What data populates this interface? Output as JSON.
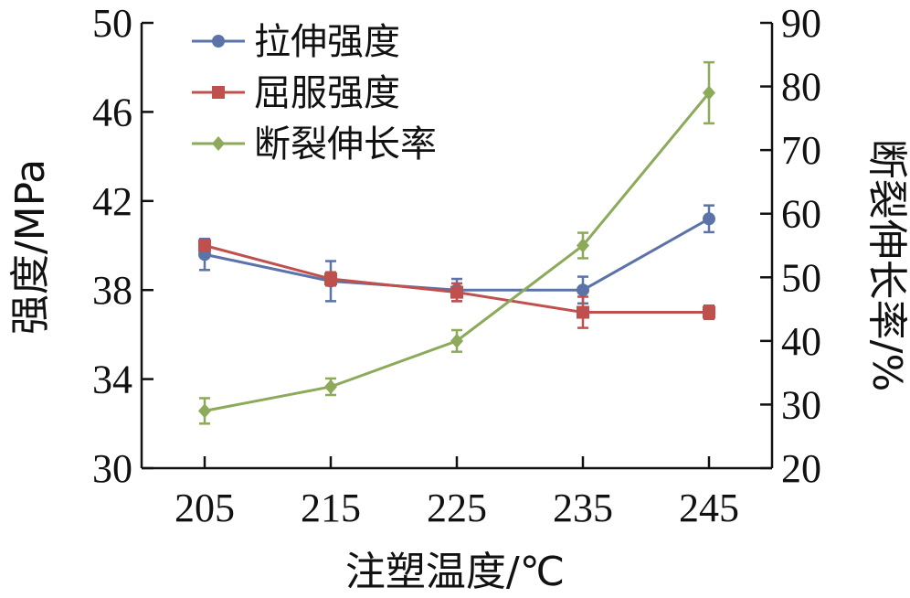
{
  "chart_data": {
    "type": "line",
    "x": [
      205,
      215,
      225,
      235,
      245
    ],
    "x_tick_labels": [
      "205",
      "215",
      "225",
      "235",
      "245"
    ],
    "xlabel": "注塑温度/℃",
    "y_left": {
      "label": "强度/MPa",
      "ylim": [
        30,
        50
      ],
      "ticks": [
        30,
        34,
        38,
        42,
        46,
        50
      ],
      "tick_labels": [
        "30",
        "34",
        "38",
        "42",
        "46",
        "50"
      ]
    },
    "y_right": {
      "label": "断裂伸长率/%",
      "ylim": [
        20,
        90
      ],
      "ticks": [
        20,
        30,
        40,
        50,
        60,
        70,
        80,
        90
      ],
      "tick_labels": [
        "20",
        "30",
        "40",
        "50",
        "60",
        "70",
        "80",
        "90"
      ]
    },
    "series": [
      {
        "name": "拉伸强度",
        "axis": "left",
        "marker": "circle",
        "color": "#5b73a8",
        "values": [
          39.6,
          38.4,
          38.0,
          38.0,
          41.2
        ],
        "errors": [
          0.7,
          0.9,
          0.5,
          0.6,
          0.6
        ]
      },
      {
        "name": "屈服强度",
        "axis": "left",
        "marker": "square",
        "color": "#c0504d",
        "values": [
          40.0,
          38.5,
          37.9,
          37.0,
          37.0
        ],
        "errors": [
          0.1,
          0.3,
          0.4,
          0.7,
          0.3
        ]
      },
      {
        "name": "断裂伸长率",
        "axis": "right",
        "marker": "diamond",
        "color": "#8caa5a",
        "values": [
          29.0,
          32.8,
          40.0,
          55.0,
          79.0
        ],
        "errors": [
          2.0,
          1.3,
          1.7,
          2.0,
          4.8
        ]
      }
    ],
    "grid": false,
    "legend_position": "top-left"
  }
}
